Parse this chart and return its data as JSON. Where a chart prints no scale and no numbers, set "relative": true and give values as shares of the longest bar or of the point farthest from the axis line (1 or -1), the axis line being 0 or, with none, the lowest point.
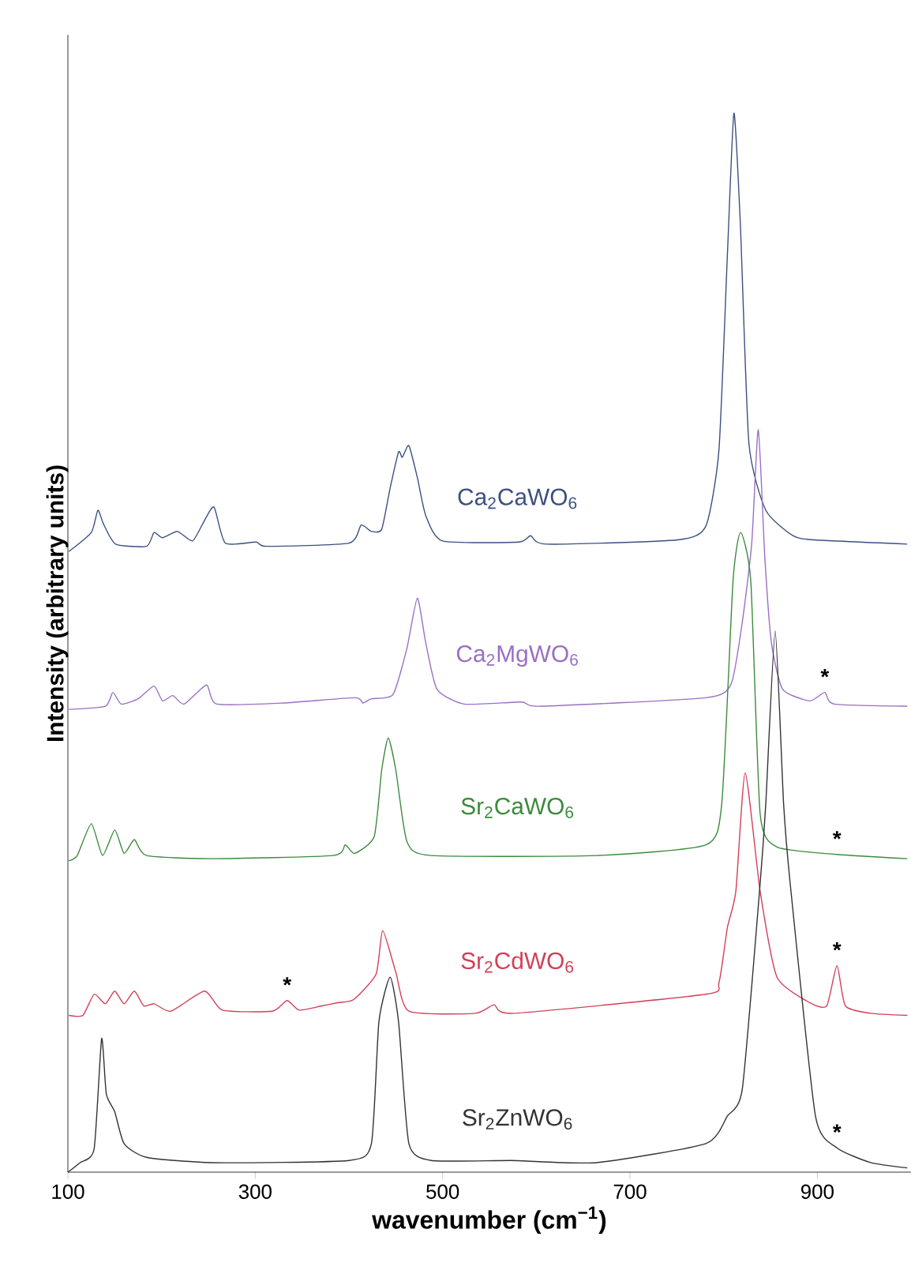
{
  "chart_data": {
    "type": "line",
    "relative": true,
    "xlabel": "wavenumber (cm$^{−1}$)",
    "ylabel": "Intensity (arbitrary units)",
    "xlim": [
      100,
      1000
    ],
    "xticks": [
      100,
      300,
      500,
      700,
      900
    ],
    "grid": false,
    "marker": "none",
    "line_style": "solid",
    "series": [
      {
        "name": "Ca$_{2}$CaWO$_{6}$",
        "color": "#3b5080",
        "x": [
          101,
          125,
          132,
          138,
          151,
          184,
          192,
          201,
          217,
          233,
          245,
          256,
          268,
          301,
          312,
          400,
          413,
          424,
          435,
          444,
          453,
          457,
          464,
          473,
          482,
          500,
          581,
          594,
          611,
          751,
          781,
          795,
          804,
          811,
          818,
          827,
          845,
          874,
          897,
          996
        ],
        "values": [
          0.586,
          0.604,
          0.625,
          0.612,
          0.593,
          0.591,
          0.604,
          0.599,
          0.605,
          0.596,
          0.614,
          0.628,
          0.594,
          0.595,
          0.591,
          0.594,
          0.611,
          0.605,
          0.607,
          0.646,
          0.68,
          0.675,
          0.686,
          0.656,
          0.62,
          0.596,
          0.595,
          0.601,
          0.593,
          0.597,
          0.61,
          0.682,
          0.866,
          1.0,
          0.892,
          0.688,
          0.625,
          0.601,
          0.597,
          0.593
        ]
      },
      {
        "name": "Ca$_{2}$MgWO$_{6}$",
        "color": "#9b6fc4",
        "x": [
          101,
          140,
          148,
          157,
          175,
          192,
          201,
          212,
          224,
          248,
          259,
          330,
          406,
          415,
          424,
          447,
          462,
          473,
          482,
          494,
          523,
          584,
          605,
          781,
          808,
          820,
          830,
          837,
          844,
          851,
          863,
          892,
          908,
          918,
          996
        ],
        "values": [
          0.437,
          0.44,
          0.453,
          0.442,
          0.447,
          0.459,
          0.445,
          0.45,
          0.442,
          0.46,
          0.442,
          0.443,
          0.448,
          0.443,
          0.447,
          0.451,
          0.495,
          0.542,
          0.5,
          0.456,
          0.442,
          0.444,
          0.44,
          0.448,
          0.461,
          0.52,
          0.594,
          0.701,
          0.58,
          0.5,
          0.456,
          0.445,
          0.453,
          0.442,
          0.44
        ]
      },
      {
        "name": "Sr$_{2}$CaWO$_{6}$",
        "color": "#3d8a3d",
        "x": [
          101,
          110,
          125,
          137,
          150,
          160,
          171,
          184,
          254,
          383,
          396,
          406,
          427,
          435,
          442,
          450,
          462,
          488,
          664,
          781,
          798,
          810,
          818,
          829,
          839,
          857,
          921,
          996
        ],
        "values": [
          0.294,
          0.299,
          0.329,
          0.299,
          0.323,
          0.301,
          0.314,
          0.299,
          0.296,
          0.299,
          0.309,
          0.301,
          0.317,
          0.38,
          0.41,
          0.38,
          0.312,
          0.299,
          0.299,
          0.309,
          0.348,
          0.558,
          0.604,
          0.558,
          0.338,
          0.307,
          0.3,
          0.296
        ]
      },
      {
        "name": "Sr$_{2}$CdWO$_{6}$",
        "color": "#d24058",
        "x": [
          101,
          116,
          128,
          140,
          150,
          160,
          171,
          181,
          192,
          210,
          246,
          265,
          318,
          334,
          347,
          371,
          388,
          405,
          429,
          436,
          450,
          464,
          535,
          555,
          576,
          781,
          795,
          804,
          813,
          823,
          839,
          857,
          892,
          910,
          921,
          930,
          957,
          996
        ],
        "values": [
          0.148,
          0.148,
          0.168,
          0.159,
          0.171,
          0.159,
          0.171,
          0.157,
          0.159,
          0.152,
          0.171,
          0.153,
          0.152,
          0.162,
          0.153,
          0.157,
          0.16,
          0.163,
          0.187,
          0.228,
          0.189,
          0.152,
          0.15,
          0.158,
          0.15,
          0.168,
          0.179,
          0.231,
          0.265,
          0.377,
          0.265,
          0.184,
          0.16,
          0.157,
          0.195,
          0.157,
          0.15,
          0.148
        ]
      },
      {
        "name": "Sr$_{2}$ZnWO$_{6}$",
        "color": "#333333",
        "x": [
          100,
          113,
          128,
          136,
          141,
          150,
          160,
          184,
          254,
          400,
          424,
          432,
          444,
          453,
          464,
          488,
          574,
          664,
          781,
          804,
          820,
          839,
          845,
          855,
          864,
          871,
          898,
          921,
          957,
          996
        ],
        "values": [
          0.0,
          0.009,
          0.022,
          0.126,
          0.074,
          0.057,
          0.027,
          0.014,
          0.009,
          0.011,
          0.027,
          0.142,
          0.184,
          0.142,
          0.027,
          0.011,
          0.011,
          0.009,
          0.027,
          0.053,
          0.079,
          0.273,
          0.348,
          0.511,
          0.348,
          0.273,
          0.053,
          0.023,
          0.009,
          0.004
        ]
      }
    ],
    "annotations": [
      {
        "text": "*",
        "x": 908,
        "y": 0.453
      },
      {
        "text": "*",
        "x": 921,
        "y": 0.3
      },
      {
        "text": "*",
        "x": 334,
        "y": 0.162
      },
      {
        "text": "*",
        "x": 921,
        "y": 0.195
      },
      {
        "text": "*",
        "x": 921,
        "y": 0.023
      }
    ]
  }
}
